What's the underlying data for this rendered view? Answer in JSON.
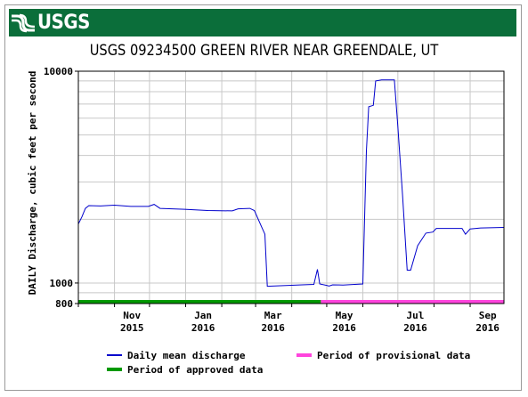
{
  "header": {
    "logo_text": "USGS",
    "logo_icon": "usgs-wave-icon",
    "banner_color": "#0b6e3a"
  },
  "chart_data": {
    "type": "line",
    "title": "USGS 09234500 GREEN RIVER NEAR GREENDALE, UT",
    "ylabel": "DAILY Discharge, cubic feet per second",
    "xlabel": "",
    "yscale": "log",
    "ylim": [
      800,
      10000
    ],
    "y_tick_labels": [
      "800",
      "1000",
      "10000"
    ],
    "xlim": [
      "2015-10-01",
      "2016-09-30"
    ],
    "x_tick_labels": [
      {
        "month": "Nov",
        "year": "2015",
        "date": "2015-11-01"
      },
      {
        "month": "Jan",
        "year": "2016",
        "date": "2016-01-01"
      },
      {
        "month": "Mar",
        "year": "2016",
        "date": "2016-03-01"
      },
      {
        "month": "May",
        "year": "2016",
        "date": "2016-05-01"
      },
      {
        "month": "Jul",
        "year": "2016",
        "date": "2016-07-01"
      },
      {
        "month": "Sep",
        "year": "2016",
        "date": "2016-09-01"
      }
    ],
    "grid": true,
    "legend_position": "bottom",
    "series": [
      {
        "name": "Daily mean discharge",
        "color": "#0000cc",
        "points": [
          [
            "2015-10-01",
            1900
          ],
          [
            "2015-10-04",
            2050
          ],
          [
            "2015-10-07",
            2250
          ],
          [
            "2015-10-10",
            2320
          ],
          [
            "2015-10-20",
            2310
          ],
          [
            "2015-11-01",
            2330
          ],
          [
            "2015-11-15",
            2300
          ],
          [
            "2015-11-30",
            2300
          ],
          [
            "2015-12-05",
            2350
          ],
          [
            "2015-12-10",
            2250
          ],
          [
            "2015-12-31",
            2230
          ],
          [
            "2016-01-20",
            2200
          ],
          [
            "2016-02-10",
            2190
          ],
          [
            "2016-02-15",
            2240
          ],
          [
            "2016-02-25",
            2250
          ],
          [
            "2016-02-29",
            2200
          ],
          [
            "2016-03-06",
            1850
          ],
          [
            "2016-03-09",
            1700
          ],
          [
            "2016-03-11",
            965
          ],
          [
            "2016-03-20",
            970
          ],
          [
            "2016-04-10",
            980
          ],
          [
            "2016-04-20",
            985
          ],
          [
            "2016-04-23",
            1160
          ],
          [
            "2016-04-25",
            990
          ],
          [
            "2016-05-01",
            975
          ],
          [
            "2016-05-03",
            968
          ],
          [
            "2016-05-06",
            980
          ],
          [
            "2016-05-15",
            978
          ],
          [
            "2016-05-25",
            985
          ],
          [
            "2016-06-01",
            990
          ],
          [
            "2016-06-04",
            4200
          ],
          [
            "2016-06-06",
            6800
          ],
          [
            "2016-06-10",
            6900
          ],
          [
            "2016-06-12",
            9000
          ],
          [
            "2016-06-17",
            9100
          ],
          [
            "2016-06-28",
            9100
          ],
          [
            "2016-07-01",
            5500
          ],
          [
            "2016-07-05",
            2600
          ],
          [
            "2016-07-09",
            1150
          ],
          [
            "2016-07-12",
            1150
          ],
          [
            "2016-07-18",
            1500
          ],
          [
            "2016-07-25",
            1720
          ],
          [
            "2016-07-31",
            1740
          ],
          [
            "2016-08-03",
            1810
          ],
          [
            "2016-08-25",
            1810
          ],
          [
            "2016-08-28",
            1700
          ],
          [
            "2016-09-01",
            1800
          ],
          [
            "2016-09-10",
            1820
          ],
          [
            "2016-09-30",
            1830
          ]
        ]
      }
    ],
    "periods": [
      {
        "name": "Period of approved data",
        "color": "#009900",
        "start": "2015-10-01",
        "end": "2016-04-26"
      },
      {
        "name": "Period of provisional data",
        "color": "#ff44dd",
        "start": "2016-04-26",
        "end": "2016-09-30"
      }
    ],
    "legend": [
      {
        "label": "Daily mean discharge",
        "color": "#0000cc"
      },
      {
        "label": "Period of provisional data",
        "color": "#ff44dd"
      },
      {
        "label": "Period of approved data",
        "color": "#009900"
      }
    ]
  }
}
